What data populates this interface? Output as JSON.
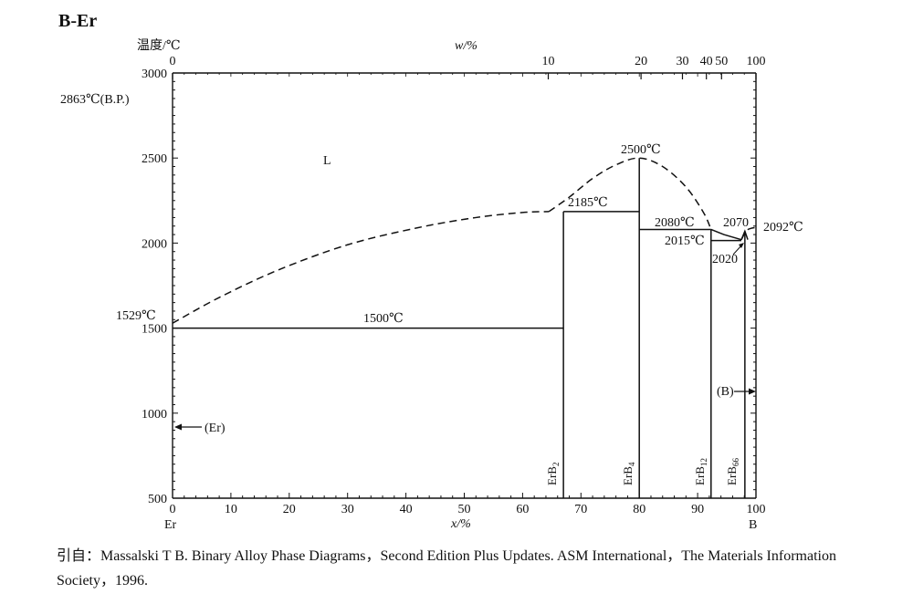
{
  "chart_data": {
    "type": "line",
    "title": "B-Er",
    "ylabel": "温度/℃",
    "xlabel": "x/%",
    "top_axis_label": "w/%",
    "xlim": [
      0,
      100
    ],
    "ylim": [
      500,
      3000
    ],
    "bottom_ticks": [
      "0",
      "10",
      "20",
      "30",
      "40",
      "50",
      "60",
      "70",
      "80",
      "90",
      "100"
    ],
    "left_ticks": [
      "500",
      "1000",
      "1500",
      "2000",
      "2500",
      "3000"
    ],
    "top_ticks": [
      {
        "label": "0",
        "x": 0
      },
      {
        "label": "10",
        "x": 64.4
      },
      {
        "label": "20",
        "x": 80.3
      },
      {
        "label": "30",
        "x": 87.4
      },
      {
        "label": "40",
        "x": 91.5
      },
      {
        "label": "50",
        "x": 94.1
      },
      {
        "label": "100",
        "x": 100
      }
    ],
    "end_labels": {
      "left": "Er",
      "right": "B"
    },
    "liquidus_dashed": [
      {
        "name": "liquidus-er-side",
        "points": [
          [
            0,
            1529
          ],
          [
            8,
            1680
          ],
          [
            18,
            1840
          ],
          [
            30,
            1990
          ],
          [
            42,
            2090
          ],
          [
            52,
            2150
          ],
          [
            60,
            2180
          ],
          [
            64.5,
            2185
          ]
        ]
      },
      {
        "name": "liquidus-erb4-dome",
        "points": [
          [
            64.5,
            2185
          ],
          [
            68,
            2270
          ],
          [
            72,
            2380
          ],
          [
            76,
            2460
          ],
          [
            80,
            2500
          ],
          [
            84,
            2450
          ],
          [
            88,
            2330
          ],
          [
            91,
            2180
          ],
          [
            92.3,
            2080
          ]
        ]
      },
      {
        "name": "liquidus-b-side",
        "points": [
          [
            97.5,
            2020
          ],
          [
            98.3,
            2070
          ],
          [
            99,
            2085
          ],
          [
            100,
            2092
          ]
        ]
      }
    ],
    "solid_lines": [
      {
        "name": "eutectic-1500",
        "points": [
          [
            0,
            1500
          ],
          [
            67,
            1500
          ]
        ]
      },
      {
        "name": "peritectic-2185",
        "points": [
          [
            67,
            2185
          ],
          [
            80,
            2185
          ]
        ]
      },
      {
        "name": "eutectic-2080",
        "points": [
          [
            80,
            2080
          ],
          [
            92.3,
            2080
          ]
        ]
      },
      {
        "name": "line-2015",
        "points": [
          [
            92.3,
            2015
          ],
          [
            97.5,
            2015
          ]
        ]
      },
      {
        "name": "liquidus-b-solid",
        "points": [
          [
            92.3,
            2080
          ],
          [
            94.5,
            2050
          ],
          [
            97.5,
            2020
          ]
        ]
      },
      {
        "name": "erb66-peak",
        "points": [
          [
            97.5,
            2020
          ],
          [
            98.1,
            2070
          ],
          [
            98.6,
            2020
          ]
        ]
      },
      {
        "name": "erb2-line",
        "points": [
          [
            67,
            500
          ],
          [
            67,
            2185
          ]
        ]
      },
      {
        "name": "erb4-line",
        "points": [
          [
            80,
            500
          ],
          [
            80,
            2500
          ]
        ]
      },
      {
        "name": "erb12-line",
        "points": [
          [
            92.3,
            500
          ],
          [
            92.3,
            2080
          ]
        ]
      },
      {
        "name": "erb66-line",
        "points": [
          [
            98.1,
            500
          ],
          [
            98.1,
            2070
          ]
        ]
      }
    ],
    "phase_labels": [
      "ErB2",
      "ErB4",
      "ErB12",
      "ErB66"
    ],
    "annotations": {
      "bp": "2863℃(B.P.)",
      "er_melt": "1529℃",
      "t1500": "1500℃",
      "t2185": "2185℃",
      "t2500": "2500℃",
      "t2080": "2080℃",
      "t2015": "2015℃",
      "t2020": "2020",
      "t2070": "2070",
      "t2092": "2092℃",
      "liquid": "L",
      "er_phase": "(Er)",
      "b_phase": "(B)"
    }
  },
  "citation": "引自：Massalski T B. Binary Alloy Phase Diagrams，Second Edition Plus Updates. ASM International，The Materials Information Society，1996."
}
